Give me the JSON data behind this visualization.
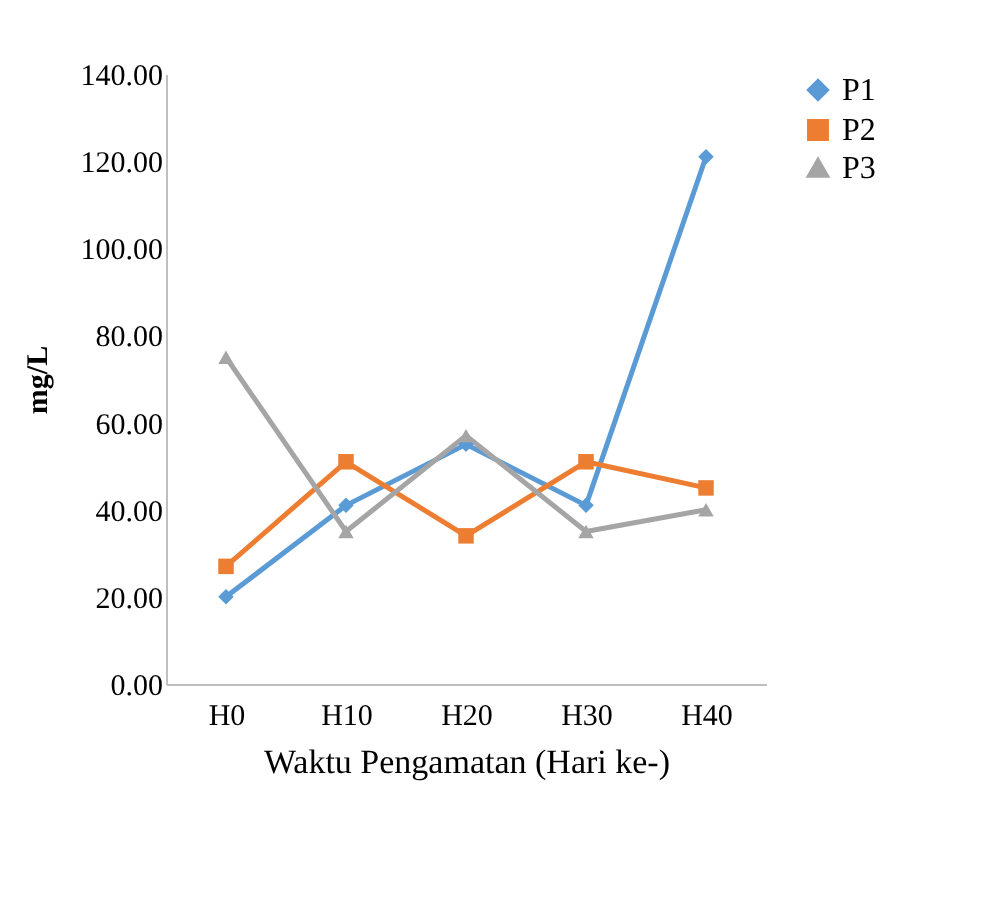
{
  "chart_data": {
    "type": "line",
    "ylabel": "mg/L",
    "xlabel": "Waktu Pengamatan (Hari ke-)",
    "categories": [
      "H0",
      "H10",
      "H20",
      "H30",
      "H40"
    ],
    "series": [
      {
        "name": "P1",
        "color": "#5b9bd5",
        "marker": "diamond",
        "values": [
          20,
          41,
          55,
          41,
          121
        ]
      },
      {
        "name": "P2",
        "color": "#ed7d31",
        "marker": "square",
        "values": [
          27,
          51,
          34,
          51,
          45
        ]
      },
      {
        "name": "P3",
        "color": "#a5a5a5",
        "marker": "triangle",
        "values": [
          75,
          35,
          57,
          35,
          40
        ]
      }
    ],
    "ylim": [
      0,
      140
    ],
    "yticks": [
      {
        "value": 0,
        "label": "0.00"
      },
      {
        "value": 20,
        "label": "20.00"
      },
      {
        "value": 40,
        "label": "40.00"
      },
      {
        "value": 60,
        "label": "60.00"
      },
      {
        "value": 80,
        "label": "80.00"
      },
      {
        "value": 100,
        "label": "100.00"
      },
      {
        "value": 120,
        "label": "120.00"
      },
      {
        "value": 140,
        "label": "140.00"
      }
    ],
    "grid": false,
    "legend": "right",
    "line_style": "solid"
  }
}
